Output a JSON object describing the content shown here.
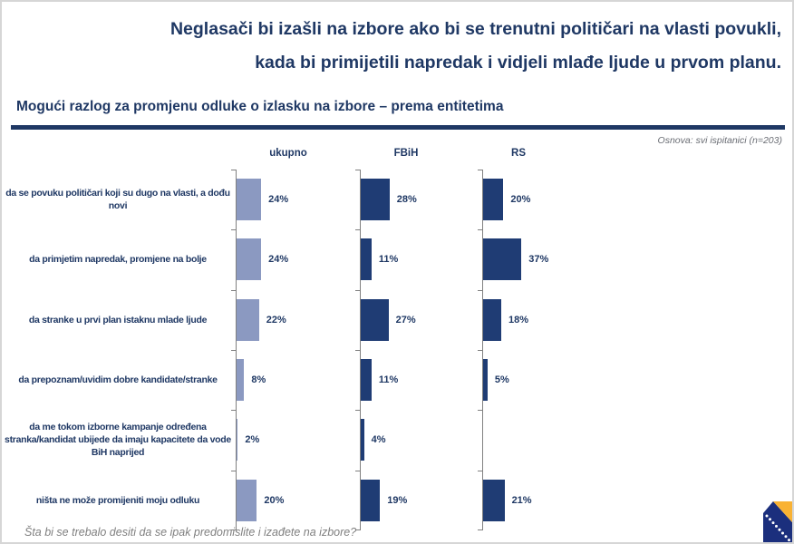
{
  "title": {
    "line1": "Neglasači bi izašli na izbore ako bi se trenutni političari na vlasti povukli,",
    "line2": "kada bi primijetili napredak i vidjeli mlađe ljude u prvom planu."
  },
  "subtitle": "Mogući razlog za promjenu odluke o izlasku na izbore – prema entitetima",
  "base_note": "Osnova: svi ispitanici (n=203)",
  "footer_question": "Šta bi se trebalo desiti da se ipak predomislite i izađete na izbore?",
  "colors": {
    "navy_text": "#1F3864",
    "light_bar": "#8B99C1",
    "dark_bar": "#1F3C74",
    "axis": "#808080"
  },
  "logo": {
    "name": "bosnia-herzegovina-flag",
    "blue": "#1B2F7D",
    "yellow": "#F9B233",
    "star": "#FFFFFF"
  },
  "chart_data": {
    "type": "bar",
    "orientation": "horizontal",
    "unit": "%",
    "xlim": [
      0,
      40
    ],
    "grid": false,
    "columns": [
      "ukupno",
      "FBiH",
      "RS"
    ],
    "rows": [
      {
        "label": "da se povuku političari koji su dugo na vlasti, a dođu novi",
        "values": {
          "ukupno": 24,
          "fbih": 28,
          "rs": 20
        },
        "labels": {
          "ukupno": "24%",
          "fbih": "28%",
          "rs": "20%"
        }
      },
      {
        "label": "da primjetim napredak, promjene na bolje",
        "values": {
          "ukupno": 24,
          "fbih": 11,
          "rs": 37
        },
        "labels": {
          "ukupno": "24%",
          "fbih": "11%",
          "rs": "37%"
        }
      },
      {
        "label": "da stranke u prvi plan istaknu mlade ljude",
        "values": {
          "ukupno": 22,
          "fbih": 27,
          "rs": 18
        },
        "labels": {
          "ukupno": "22%",
          "fbih": "27%",
          "rs": "18%"
        }
      },
      {
        "label": "da prepoznam/uvidim dobre kandidate/stranke",
        "values": {
          "ukupno": 8,
          "fbih": 11,
          "rs": 5
        },
        "labels": {
          "ukupno": "8%",
          "fbih": "11%",
          "rs": "5%"
        }
      },
      {
        "label": "da me tokom izborne kampanje određena stranka/kandidat ubijede da imaju kapacitete da vode BiH naprijed",
        "values": {
          "ukupno": 2,
          "fbih": 4,
          "rs": null
        },
        "labels": {
          "ukupno": "2%",
          "fbih": "4%",
          "rs": ""
        }
      },
      {
        "label": "ništa ne može promijeniti moju odluku",
        "values": {
          "ukupno": 20,
          "fbih": 19,
          "rs": 21
        },
        "labels": {
          "ukupno": "20%",
          "fbih": "19%",
          "rs": "21%"
        }
      }
    ]
  }
}
